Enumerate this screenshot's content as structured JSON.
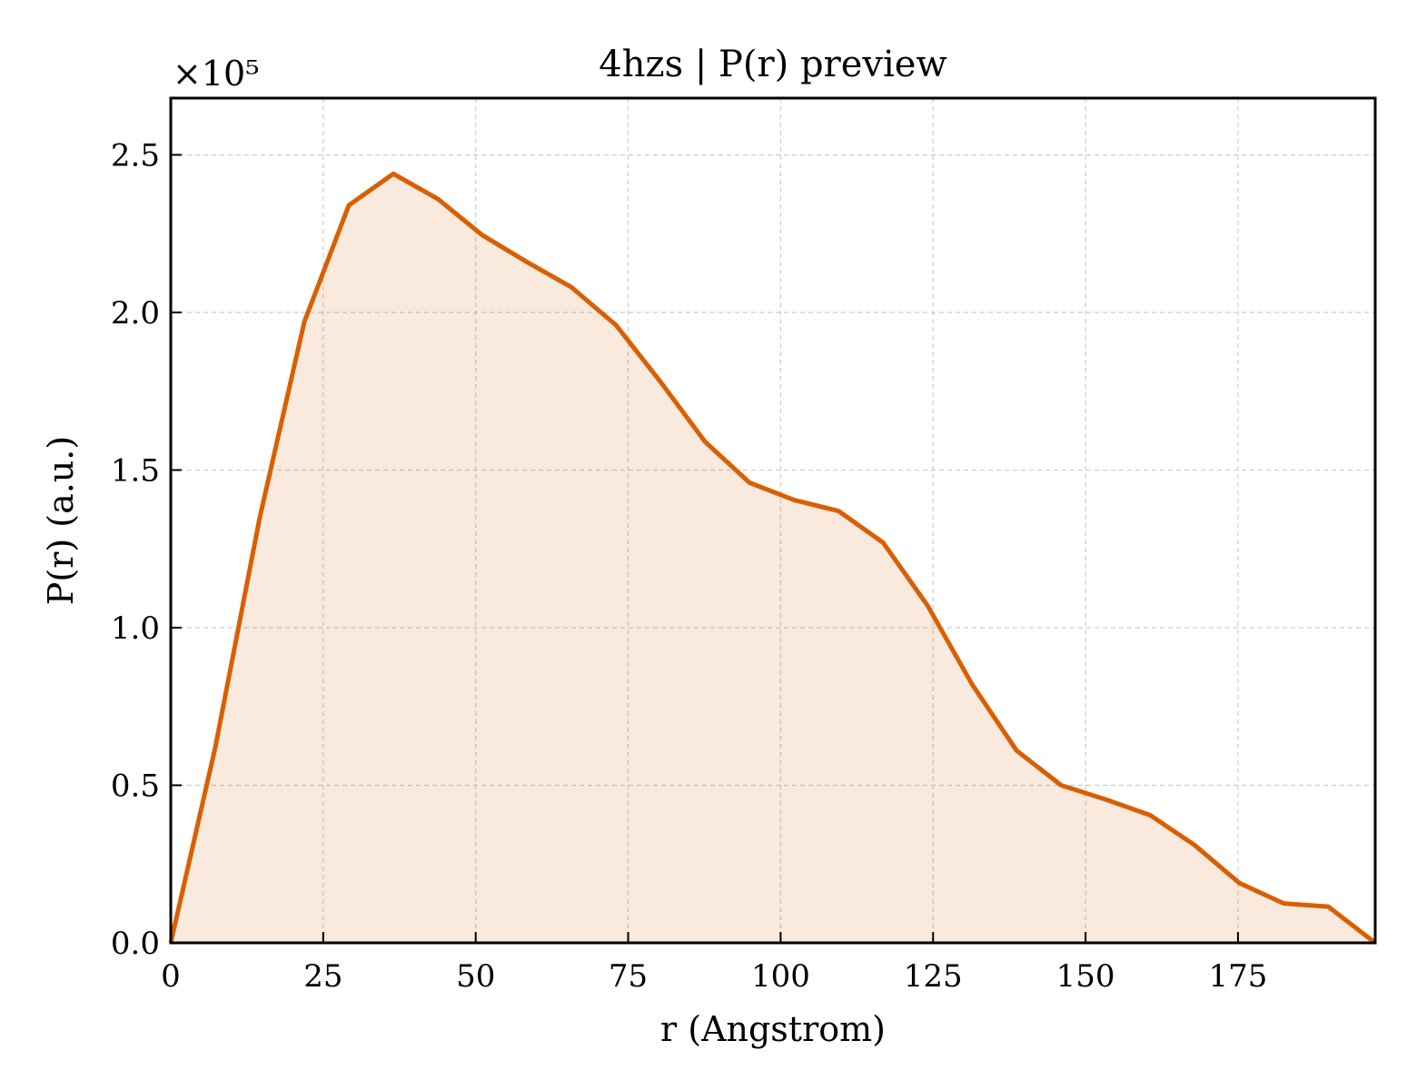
{
  "chart_data": {
    "type": "area",
    "title": "4hzs | P(r) preview",
    "xlabel": "r (Angstrom)",
    "ylabel": "P(r) (a.u.)",
    "y_offset_label": "×10⁵",
    "y_multiplier": 100000,
    "xlim": [
      0,
      197.5
    ],
    "ylim": [
      0,
      268000
    ],
    "xticks": [
      0,
      25,
      50,
      75,
      100,
      125,
      150,
      175
    ],
    "xtick_labels": [
      "0",
      "25",
      "50",
      "75",
      "100",
      "125",
      "150",
      "175"
    ],
    "yticks": [
      0,
      50000,
      100000,
      150000,
      200000,
      250000
    ],
    "ytick_labels": [
      "0.0",
      "0.5",
      "1.0",
      "1.5",
      "2.0",
      "2.5"
    ],
    "grid": true,
    "colors": {
      "line": "#d95f02",
      "fill": "#d95f02"
    },
    "series": [
      {
        "x": [
          0,
          7.3,
          14.6,
          21.9,
          29.2,
          36.5,
          43.8,
          51.1,
          58.4,
          65.7,
          73.0,
          80.3,
          87.6,
          94.9,
          102.2,
          109.5,
          116.8,
          124.1,
          131.4,
          138.7,
          146.0,
          153.3,
          160.6,
          167.9,
          175.2,
          182.5,
          189.8,
          197.5
        ],
        "y": [
          0,
          62000,
          135000,
          197000,
          234000,
          244000,
          236000,
          224500,
          216000,
          208000,
          196000,
          178000,
          159000,
          146000,
          140500,
          137000,
          127000,
          107000,
          82000,
          61000,
          50000,
          45500,
          40500,
          31000,
          19000,
          12500,
          11500,
          0
        ]
      }
    ]
  }
}
